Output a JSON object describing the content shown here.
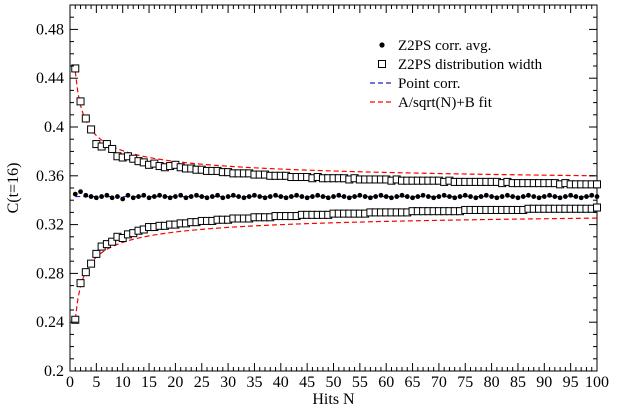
{
  "chart_data": {
    "type": "scatter",
    "xlabel": "Hits N",
    "ylabel": "C(t=16)",
    "xlim": [
      0,
      100
    ],
    "ylim": [
      0.2,
      0.5
    ],
    "x_ticks": [
      0,
      5,
      10,
      15,
      20,
      25,
      30,
      35,
      40,
      45,
      50,
      55,
      60,
      65,
      70,
      75,
      80,
      85,
      90,
      95,
      100
    ],
    "y_ticks": [
      0.2,
      0.24,
      0.28,
      0.32,
      0.36,
      0.4,
      0.44,
      0.48
    ],
    "y_tick_labels": [
      "0.2",
      "0.24",
      "0.28",
      "0.32",
      "0.36",
      "0.4",
      "0.44",
      "0.48"
    ],
    "grid": false,
    "legend_position": "top-right",
    "legend": [
      {
        "label": "Z2PS corr. avg.",
        "marker": "dot",
        "color": "#000000"
      },
      {
        "label": "Z2PS distribution width",
        "marker": "open-square",
        "color": "#000000"
      },
      {
        "label": "Point corr.",
        "marker": "dashed-line",
        "color": "#2222cc"
      },
      {
        "label": "A/sqrt(N)+B fit",
        "marker": "dashed-line",
        "color": "#ff0000"
      }
    ],
    "point_corr_value": 0.343,
    "fit_upper": {
      "A": 0.095,
      "B": 0.3505
    },
    "fit_lower": {
      "A": -0.092,
      "B": 0.3345
    },
    "corr_avg": {
      "x": [
        1,
        2,
        3,
        4,
        5,
        6,
        7,
        8,
        9,
        10,
        11,
        12,
        13,
        14,
        15,
        16,
        17,
        18,
        19,
        20,
        21,
        22,
        23,
        24,
        25,
        26,
        27,
        28,
        29,
        30,
        31,
        32,
        33,
        34,
        35,
        36,
        37,
        38,
        39,
        40,
        41,
        42,
        43,
        44,
        45,
        46,
        47,
        48,
        49,
        50,
        51,
        52,
        53,
        54,
        55,
        56,
        57,
        58,
        59,
        60,
        61,
        62,
        63,
        64,
        65,
        66,
        67,
        68,
        69,
        70,
        71,
        72,
        73,
        74,
        75,
        76,
        77,
        78,
        79,
        80,
        81,
        82,
        83,
        84,
        85,
        86,
        87,
        88,
        89,
        90,
        91,
        92,
        93,
        94,
        95,
        96,
        97,
        98,
        99,
        100
      ],
      "y": [
        0.345,
        0.347,
        0.344,
        0.343,
        0.342,
        0.343,
        0.344,
        0.342,
        0.343,
        0.341,
        0.344,
        0.342,
        0.343,
        0.344,
        0.342,
        0.343,
        0.344,
        0.343,
        0.342,
        0.343,
        0.344,
        0.342,
        0.343,
        0.344,
        0.343,
        0.342,
        0.343,
        0.344,
        0.342,
        0.343,
        0.344,
        0.343,
        0.342,
        0.343,
        0.344,
        0.343,
        0.342,
        0.343,
        0.344,
        0.343,
        0.342,
        0.343,
        0.344,
        0.343,
        0.342,
        0.343,
        0.344,
        0.343,
        0.342,
        0.343,
        0.344,
        0.343,
        0.342,
        0.343,
        0.344,
        0.343,
        0.342,
        0.343,
        0.344,
        0.343,
        0.342,
        0.343,
        0.344,
        0.343,
        0.342,
        0.343,
        0.344,
        0.343,
        0.342,
        0.343,
        0.344,
        0.343,
        0.342,
        0.343,
        0.344,
        0.343,
        0.342,
        0.343,
        0.344,
        0.343,
        0.342,
        0.343,
        0.344,
        0.343,
        0.342,
        0.343,
        0.344,
        0.343,
        0.342,
        0.343,
        0.344,
        0.343,
        0.342,
        0.343,
        0.344,
        0.343,
        0.342,
        0.343,
        0.344,
        0.343
      ]
    },
    "width_upper": {
      "x": [
        1,
        2,
        3,
        4,
        5,
        6,
        7,
        8,
        9,
        10,
        11,
        12,
        13,
        14,
        15,
        16,
        17,
        18,
        19,
        20,
        21,
        22,
        23,
        24,
        25,
        26,
        27,
        28,
        29,
        30,
        31,
        32,
        33,
        34,
        35,
        36,
        37,
        38,
        39,
        40,
        41,
        42,
        43,
        44,
        45,
        46,
        47,
        48,
        49,
        50,
        51,
        52,
        53,
        54,
        55,
        56,
        57,
        58,
        59,
        60,
        61,
        62,
        63,
        64,
        65,
        66,
        67,
        68,
        69,
        70,
        71,
        72,
        73,
        74,
        75,
        76,
        77,
        78,
        79,
        80,
        81,
        82,
        83,
        84,
        85,
        86,
        87,
        88,
        89,
        90,
        91,
        92,
        93,
        94,
        95,
        96,
        97,
        98,
        99,
        100
      ],
      "y": [
        0.448,
        0.421,
        0.407,
        0.398,
        0.386,
        0.384,
        0.386,
        0.382,
        0.376,
        0.375,
        0.376,
        0.374,
        0.372,
        0.371,
        0.369,
        0.37,
        0.368,
        0.367,
        0.368,
        0.369,
        0.367,
        0.366,
        0.366,
        0.365,
        0.365,
        0.364,
        0.364,
        0.364,
        0.363,
        0.363,
        0.362,
        0.362,
        0.362,
        0.362,
        0.361,
        0.361,
        0.361,
        0.36,
        0.36,
        0.36,
        0.36,
        0.359,
        0.359,
        0.359,
        0.359,
        0.358,
        0.359,
        0.358,
        0.358,
        0.358,
        0.358,
        0.358,
        0.357,
        0.358,
        0.357,
        0.357,
        0.357,
        0.357,
        0.357,
        0.357,
        0.356,
        0.357,
        0.356,
        0.356,
        0.356,
        0.356,
        0.356,
        0.356,
        0.356,
        0.356,
        0.355,
        0.356,
        0.355,
        0.355,
        0.355,
        0.355,
        0.355,
        0.355,
        0.355,
        0.355,
        0.355,
        0.354,
        0.355,
        0.354,
        0.354,
        0.354,
        0.354,
        0.354,
        0.354,
        0.354,
        0.354,
        0.354,
        0.353,
        0.354,
        0.353,
        0.353,
        0.353,
        0.353,
        0.353,
        0.353
      ]
    },
    "width_lower": {
      "x": [
        1,
        2,
        3,
        4,
        5,
        6,
        7,
        8,
        9,
        10,
        11,
        12,
        13,
        14,
        15,
        16,
        17,
        18,
        19,
        20,
        21,
        22,
        23,
        24,
        25,
        26,
        27,
        28,
        29,
        30,
        31,
        32,
        33,
        34,
        35,
        36,
        37,
        38,
        39,
        40,
        41,
        42,
        43,
        44,
        45,
        46,
        47,
        48,
        49,
        50,
        51,
        52,
        53,
        54,
        55,
        56,
        57,
        58,
        59,
        60,
        61,
        62,
        63,
        64,
        65,
        66,
        67,
        68,
        69,
        70,
        71,
        72,
        73,
        74,
        75,
        76,
        77,
        78,
        79,
        80,
        81,
        82,
        83,
        84,
        85,
        86,
        87,
        88,
        89,
        90,
        91,
        92,
        93,
        94,
        95,
        96,
        97,
        98,
        99,
        100
      ],
      "y": [
        0.242,
        0.272,
        0.281,
        0.288,
        0.296,
        0.302,
        0.304,
        0.306,
        0.31,
        0.309,
        0.312,
        0.313,
        0.315,
        0.316,
        0.318,
        0.318,
        0.319,
        0.319,
        0.32,
        0.32,
        0.321,
        0.321,
        0.322,
        0.322,
        0.323,
        0.323,
        0.323,
        0.324,
        0.324,
        0.324,
        0.325,
        0.325,
        0.325,
        0.325,
        0.326,
        0.326,
        0.326,
        0.326,
        0.327,
        0.327,
        0.327,
        0.327,
        0.327,
        0.328,
        0.328,
        0.328,
        0.328,
        0.328,
        0.328,
        0.329,
        0.329,
        0.329,
        0.329,
        0.329,
        0.329,
        0.329,
        0.33,
        0.33,
        0.33,
        0.33,
        0.33,
        0.33,
        0.33,
        0.33,
        0.331,
        0.331,
        0.331,
        0.331,
        0.331,
        0.331,
        0.331,
        0.331,
        0.331,
        0.331,
        0.332,
        0.332,
        0.332,
        0.332,
        0.332,
        0.332,
        0.332,
        0.332,
        0.332,
        0.332,
        0.332,
        0.332,
        0.333,
        0.333,
        0.333,
        0.333,
        0.333,
        0.333,
        0.333,
        0.333,
        0.333,
        0.333,
        0.333,
        0.333,
        0.333,
        0.334
      ]
    }
  }
}
